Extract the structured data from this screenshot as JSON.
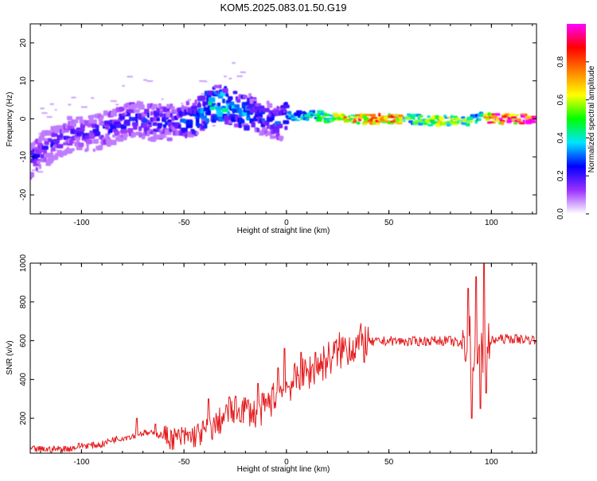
{
  "title": "KOM5.2025.083.01.50.G19",
  "chart_data": [
    {
      "type": "heatmap",
      "xlabel": "Height of straight line (km)",
      "ylabel": "Frequency (Hz)",
      "xlim": [
        -125,
        122
      ],
      "ylim": [
        -25,
        25
      ],
      "xticks": [
        -100,
        -50,
        0,
        50,
        100
      ],
      "yticks": [
        -20,
        -10,
        0,
        10,
        20
      ],
      "colorbar": {
        "label": "Normalized spectral amplitude",
        "range": [
          0,
          1
        ],
        "ticks": [
          "0.0",
          "0.2",
          "0.4",
          "0.6",
          "0.8"
        ],
        "colors": [
          "#ffffff",
          "#9b30ff",
          "#0000ff",
          "#00e5ff",
          "#00ff00",
          "#ffff00",
          "#ff8000",
          "#ff0000",
          "#ff00ff"
        ]
      },
      "ridge": {
        "x": [
          -125,
          -115,
          -105,
          -95,
          -85,
          -75,
          -65,
          -55,
          -45,
          -38,
          -33,
          -28,
          -22,
          -15,
          -8,
          -3,
          0,
          10,
          20,
          30,
          40,
          50,
          60,
          70,
          80,
          90,
          95,
          100,
          110,
          122
        ],
        "freq": [
          -11,
          -7,
          -4,
          -4,
          -2,
          0,
          -1,
          -1,
          0,
          3,
          4.5,
          3,
          2,
          1.5,
          -0.5,
          -1.5,
          0.5,
          1,
          0.5,
          0,
          0,
          0,
          0,
          -0.5,
          -0.5,
          -0.5,
          1,
          0,
          0,
          0
        ],
        "amplitude": [
          0.25,
          0.2,
          0.2,
          0.2,
          0.25,
          0.25,
          0.25,
          0.25,
          0.3,
          0.4,
          0.45,
          0.4,
          0.35,
          0.3,
          0.25,
          0.3,
          0.35,
          0.4,
          0.5,
          0.7,
          0.85,
          0.85,
          0.5,
          0.55,
          0.6,
          0.5,
          0.4,
          0.95,
          0.95,
          0.95
        ]
      }
    },
    {
      "type": "line",
      "xlabel": "Height of straight line (km)",
      "ylabel": "SNR (v/v)",
      "xlim": [
        -125,
        122
      ],
      "ylim": [
        20,
        1000
      ],
      "xticks": [
        -100,
        -50,
        0,
        50,
        100
      ],
      "yticks": [
        200,
        400,
        600,
        800,
        1000
      ],
      "series": [
        {
          "color": "#e41a1c",
          "x": [
            -125,
            -115,
            -105,
            -100,
            -95,
            -90,
            -85,
            -80,
            -75,
            -70,
            -65,
            -60,
            -55,
            -50,
            -45,
            -40,
            -35,
            -30,
            -25,
            -20,
            -15,
            -10,
            -5,
            0,
            5,
            10,
            15,
            20,
            25,
            30,
            35,
            40,
            50,
            60,
            70,
            80,
            85,
            90,
            92,
            95,
            97,
            100,
            105,
            110,
            122
          ],
          "y": [
            40,
            40,
            45,
            60,
            60,
            65,
            90,
            100,
            110,
            125,
            120,
            110,
            95,
            100,
            110,
            130,
            160,
            210,
            240,
            250,
            220,
            260,
            320,
            360,
            400,
            430,
            470,
            500,
            540,
            570,
            580,
            590,
            600,
            595,
            600,
            600,
            580,
            600,
            470,
            560,
            520,
            600,
            610,
            610,
            605
          ],
          "spike_x": [
            -73,
            -64,
            -38,
            -28,
            -14,
            -10,
            -4,
            -1,
            7,
            14,
            88.5,
            90.5,
            92.5,
            94.5,
            96.5,
            97.5
          ],
          "spike_y": [
            200,
            170,
            300,
            310,
            380,
            300,
            460,
            560,
            540,
            540,
            870,
            200,
            930,
            250,
            1000,
            330
          ]
        }
      ]
    }
  ]
}
